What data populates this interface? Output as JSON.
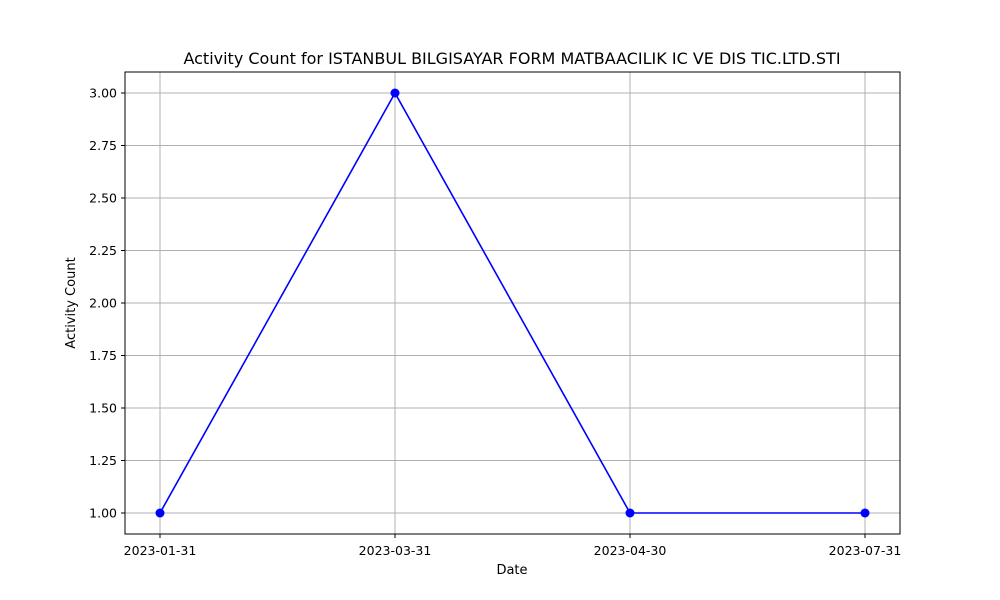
{
  "chart_data": {
    "type": "line",
    "title": "Activity Count for ISTANBUL BILGISAYAR FORM MATBAACILIK IC VE DIS TIC.LTD.STI",
    "xlabel": "Date",
    "ylabel": "Activity Count",
    "x": [
      "2023-01-31",
      "2023-03-31",
      "2023-04-30",
      "2023-07-31"
    ],
    "y_ticks": [
      "1.00",
      "1.25",
      "1.50",
      "1.75",
      "2.00",
      "2.25",
      "2.50",
      "2.75",
      "3.00"
    ],
    "ylim": [
      0.9,
      3.1
    ],
    "grid": true,
    "series": [
      {
        "values": [
          1,
          3,
          1,
          1
        ],
        "color": "#0000ff",
        "marker": "circle"
      }
    ]
  }
}
